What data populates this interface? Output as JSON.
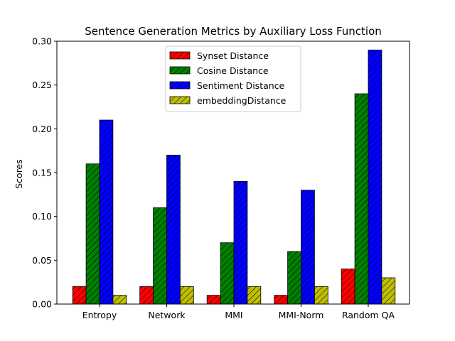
{
  "chart_data": {
    "type": "bar",
    "title": "Sentence Generation Metrics by Auxiliary Loss Function",
    "xlabel": "",
    "ylabel": "Scores",
    "categories": [
      "Entropy",
      "Network",
      "MMI",
      "MMI-Norm",
      "Random QA"
    ],
    "ylim": [
      0,
      0.3
    ],
    "yticks": [
      "0.00",
      "0.05",
      "0.10",
      "0.15",
      "0.20",
      "0.25",
      "0.30"
    ],
    "legend_position": "top-center",
    "grid": false,
    "hatch": "diagonal",
    "series": [
      {
        "name": "Synset Distance",
        "color": "#ff0000",
        "values": [
          0.02,
          0.02,
          0.01,
          0.01,
          0.04
        ]
      },
      {
        "name": "Cosine Distance",
        "color": "#008000",
        "values": [
          0.16,
          0.11,
          0.07,
          0.06,
          0.24
        ]
      },
      {
        "name": "Sentiment Distance",
        "color": "#0000ff",
        "values": [
          0.21,
          0.17,
          0.14,
          0.13,
          0.29
        ]
      },
      {
        "name": "embeddingDistance",
        "color": "#bfbf00",
        "values": [
          0.01,
          0.02,
          0.02,
          0.02,
          0.03
        ]
      }
    ]
  }
}
